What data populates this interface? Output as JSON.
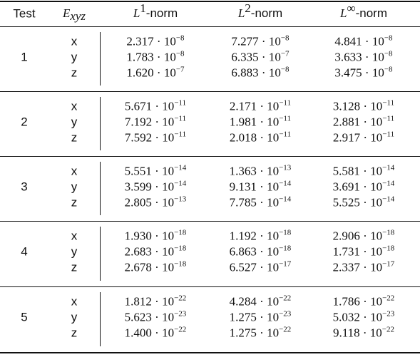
{
  "table": {
    "header": [
      {
        "text": "Test"
      },
      {
        "base": "E",
        "sub": "xyz"
      },
      {
        "base": "L",
        "sup": "1",
        "suffix": "-norm"
      },
      {
        "base": "L",
        "sup": "2",
        "suffix": "-norm"
      },
      {
        "base": "L",
        "sup": "∞",
        "suffix": "-norm"
      }
    ],
    "groups": [
      {
        "test": "1",
        "rows": [
          {
            "axis": "x",
            "cells": [
              [
                "2.317 · 10",
                "−8"
              ],
              [
                "7.277 · 10",
                "−8"
              ],
              [
                "4.841 · 10",
                "−8"
              ]
            ]
          },
          {
            "axis": "y",
            "cells": [
              [
                "1.783 · 10",
                "−8"
              ],
              [
                "6.335 · 10",
                "−7"
              ],
              [
                "3.633 · 10",
                "−8"
              ]
            ]
          },
          {
            "axis": "z",
            "cells": [
              [
                "1.620 · 10",
                "−7"
              ],
              [
                "6.883 · 10",
                "−8"
              ],
              [
                "3.475 · 10",
                "−8"
              ]
            ]
          }
        ]
      },
      {
        "test": "2",
        "rows": [
          {
            "axis": "x",
            "cells": [
              [
                "5.671 · 10",
                "−11"
              ],
              [
                "2.171 · 10",
                "−11"
              ],
              [
                "3.128 · 10",
                "−11"
              ]
            ]
          },
          {
            "axis": "y",
            "cells": [
              [
                "7.192 · 10",
                "−11"
              ],
              [
                "1.981 · 10",
                "−11"
              ],
              [
                "2.881 · 10",
                "−11"
              ]
            ]
          },
          {
            "axis": "z",
            "cells": [
              [
                "7.592 · 10",
                "−11"
              ],
              [
                "2.018 · 10",
                "−11"
              ],
              [
                "2.917 · 10",
                "−11"
              ]
            ]
          }
        ]
      },
      {
        "test": "3",
        "rows": [
          {
            "axis": "x",
            "cells": [
              [
                "5.551 · 10",
                "−14"
              ],
              [
                "1.363 · 10",
                "−13"
              ],
              [
                "5.581 · 10",
                "−14"
              ]
            ]
          },
          {
            "axis": "y",
            "cells": [
              [
                "3.599 · 10",
                "−14"
              ],
              [
                "9.131 · 10",
                "−14"
              ],
              [
                "3.691 · 10",
                "−14"
              ]
            ]
          },
          {
            "axis": "z",
            "cells": [
              [
                "2.805 · 10",
                "−13"
              ],
              [
                "7.785 · 10",
                "−14"
              ],
              [
                "5.525 · 10",
                "−14"
              ]
            ]
          }
        ]
      },
      {
        "test": "4",
        "rows": [
          {
            "axis": "x",
            "cells": [
              [
                "1.930 · 10",
                "−18"
              ],
              [
                "1.192 · 10",
                "−18"
              ],
              [
                "2.906 · 10",
                "−18"
              ]
            ]
          },
          {
            "axis": "y",
            "cells": [
              [
                "2.683 · 10",
                "−18"
              ],
              [
                "6.863 · 10",
                "−18"
              ],
              [
                "1.731 · 10",
                "−18"
              ]
            ]
          },
          {
            "axis": "z",
            "cells": [
              [
                "2.678 · 10",
                "−18"
              ],
              [
                "6.527 · 10",
                "−17"
              ],
              [
                "2.337 · 10",
                "−17"
              ]
            ]
          }
        ]
      },
      {
        "test": "5",
        "rows": [
          {
            "axis": "x",
            "cells": [
              [
                "1.812 · 10",
                "−22"
              ],
              [
                "4.284 · 10",
                "−22"
              ],
              [
                "1.786 · 10",
                "−22"
              ]
            ]
          },
          {
            "axis": "y",
            "cells": [
              [
                "5.623 · 10",
                "−23"
              ],
              [
                "1.275 · 10",
                "−23"
              ],
              [
                "5.032 · 10",
                "−23"
              ]
            ]
          },
          {
            "axis": "z",
            "cells": [
              [
                "1.400 · 10",
                "−22"
              ],
              [
                "1.275 · 10",
                "−22"
              ],
              [
                "9.118 · 10",
                "−22"
              ]
            ]
          }
        ]
      }
    ]
  }
}
